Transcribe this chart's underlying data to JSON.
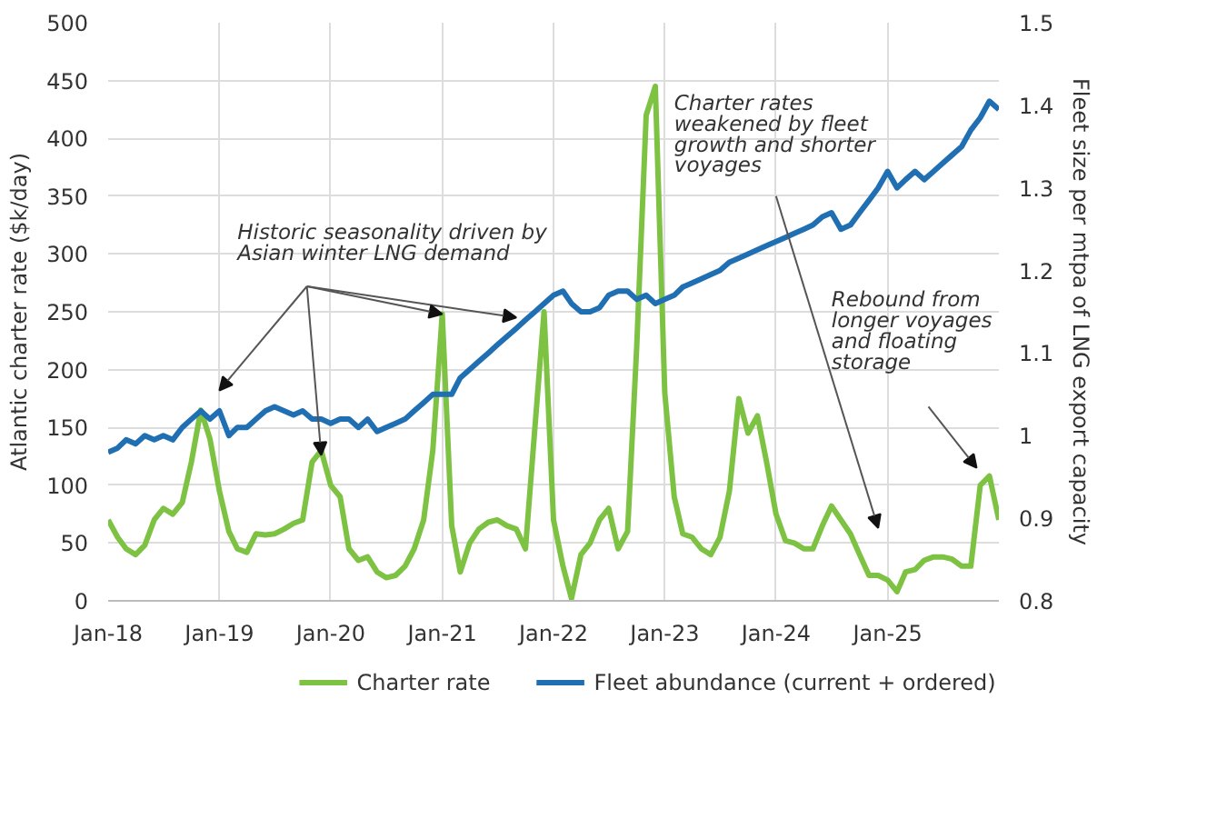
{
  "chart_data": {
    "type": "line",
    "x": [
      "2018-01",
      "2018-02",
      "2018-03",
      "2018-04",
      "2018-05",
      "2018-06",
      "2018-07",
      "2018-08",
      "2018-09",
      "2018-10",
      "2018-11",
      "2018-12",
      "2019-01",
      "2019-02",
      "2019-03",
      "2019-04",
      "2019-05",
      "2019-06",
      "2019-07",
      "2019-08",
      "2019-09",
      "2019-10",
      "2019-11",
      "2019-12",
      "2020-01",
      "2020-02",
      "2020-03",
      "2020-04",
      "2020-05",
      "2020-06",
      "2020-07",
      "2020-08",
      "2020-09",
      "2020-10",
      "2020-11",
      "2020-12",
      "2021-01",
      "2021-02",
      "2021-03",
      "2021-04",
      "2021-05",
      "2021-06",
      "2021-07",
      "2021-08",
      "2021-09",
      "2021-10",
      "2021-11",
      "2021-12",
      "2022-01",
      "2022-02",
      "2022-03",
      "2022-04",
      "2022-05",
      "2022-06",
      "2022-07",
      "2022-08",
      "2022-09",
      "2022-10",
      "2022-11",
      "2022-12",
      "2023-01",
      "2023-02",
      "2023-03",
      "2023-04",
      "2023-05",
      "2023-06",
      "2023-07",
      "2023-08",
      "2023-09",
      "2023-10",
      "2023-11",
      "2023-12",
      "2024-01",
      "2024-02",
      "2024-03",
      "2024-04",
      "2024-05",
      "2024-06",
      "2024-07",
      "2024-08",
      "2024-09",
      "2024-10",
      "2024-11",
      "2024-12",
      "2025-01",
      "2025-02",
      "2025-03",
      "2025-04",
      "2025-05",
      "2025-06",
      "2025-07",
      "2025-08",
      "2025-09",
      "2025-10",
      "2025-11",
      "2025-12",
      "2026-01"
    ],
    "series": [
      {
        "name": "Charter rate",
        "color": "#7dc242",
        "values": [
          70,
          55,
          45,
          40,
          48,
          70,
          80,
          75,
          85,
          120,
          165,
          140,
          95,
          60,
          45,
          42,
          58,
          57,
          58,
          62,
          67,
          70,
          120,
          130,
          100,
          90,
          45,
          35,
          38,
          25,
          20,
          22,
          30,
          45,
          70,
          130,
          248,
          65,
          25,
          50,
          62,
          68,
          70,
          65,
          62,
          45,
          150,
          250,
          70,
          30,
          2,
          40,
          50,
          70,
          80,
          45,
          60,
          220,
          420,
          445,
          180,
          90,
          58,
          55,
          45,
          40,
          55,
          95,
          175,
          145,
          160,
          120,
          75,
          52,
          50,
          45,
          45,
          65,
          82,
          70,
          58,
          40,
          22,
          22,
          18,
          8,
          25,
          27,
          35,
          38,
          38,
          36,
          30,
          30,
          100,
          108,
          70
        ]
      },
      {
        "name": "Fleet abundance (current + ordered)",
        "color": "#1f6fb2",
        "axis": "y2",
        "values": [
          0.98,
          0.985,
          0.995,
          0.99,
          1.0,
          0.995,
          1.0,
          0.995,
          1.01,
          1.02,
          1.03,
          1.02,
          1.03,
          1.0,
          1.01,
          1.01,
          1.02,
          1.03,
          1.035,
          1.03,
          1.025,
          1.03,
          1.02,
          1.02,
          1.015,
          1.02,
          1.02,
          1.01,
          1.02,
          1.005,
          1.01,
          1.015,
          1.02,
          1.03,
          1.04,
          1.05,
          1.05,
          1.05,
          1.07,
          1.08,
          1.09,
          1.1,
          1.11,
          1.12,
          1.13,
          1.14,
          1.15,
          1.16,
          1.17,
          1.175,
          1.16,
          1.15,
          1.15,
          1.155,
          1.17,
          1.175,
          1.175,
          1.165,
          1.17,
          1.16,
          1.165,
          1.17,
          1.18,
          1.185,
          1.19,
          1.195,
          1.2,
          1.21,
          1.215,
          1.22,
          1.225,
          1.23,
          1.235,
          1.24,
          1.245,
          1.25,
          1.255,
          1.265,
          1.27,
          1.25,
          1.255,
          1.27,
          1.285,
          1.3,
          1.32,
          1.3,
          1.31,
          1.32,
          1.31,
          1.32,
          1.33,
          1.34,
          1.35,
          1.37,
          1.385,
          1.405,
          1.395
        ]
      }
    ],
    "ylabel": "Atlantic charter rate ($k/day)",
    "y2label": "Fleet size per mtpa of LNG export capacity",
    "xlim": [
      "2018-01",
      "2026-01"
    ],
    "xticks": [
      {
        "value": "2018-01",
        "label": "Jan-18"
      },
      {
        "value": "2019-01",
        "label": "Jan-19"
      },
      {
        "value": "2020-01",
        "label": "Jan-20"
      },
      {
        "value": "2021-01",
        "label": "Jan-21"
      },
      {
        "value": "2022-01",
        "label": "Jan-22"
      },
      {
        "value": "2023-01",
        "label": "Jan-23"
      },
      {
        "value": "2024-01",
        "label": "Jan-24"
      },
      {
        "value": "2025-01",
        "label": "Jan-25"
      }
    ],
    "ylim": [
      0,
      500
    ],
    "yticks": [
      0,
      50,
      100,
      150,
      200,
      250,
      300,
      350,
      400,
      450,
      500
    ],
    "y2lim": [
      0.8,
      1.5
    ],
    "y2ticks": [
      0.8,
      0.9,
      1,
      1.1,
      1.2,
      1.3,
      1.4,
      1.5
    ],
    "annotations": [
      {
        "text": "Historic seasonality driven by Asian winter LNG demand",
        "x": "2021-01",
        "y": 248
      },
      "Charter rates weakened by fleet growth and shorter voyages",
      "Rebound from longer voyages and floating storage"
    ],
    "grid": true,
    "legend": "bottom",
    "marker": "none",
    "line_style": "solid"
  }
}
